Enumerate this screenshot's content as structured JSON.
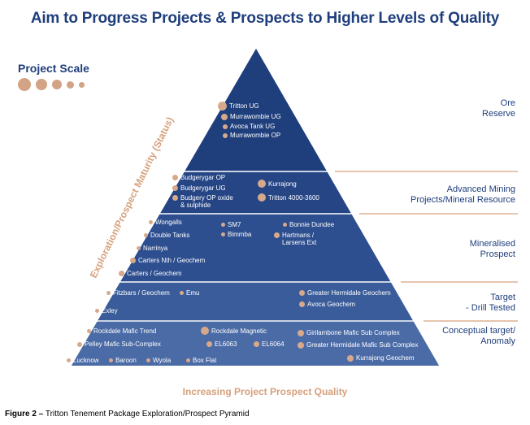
{
  "title": "Aim to Progress Projects & Prospects to Higher Levels of Quality",
  "scale_legend": {
    "label": "Project Scale"
  },
  "axes": {
    "x_label": "Increasing Project Prospect Quality",
    "y_label": "Exploration/Prospect Maturity (Status)"
  },
  "stages": [
    {
      "label": "Ore\nReserve"
    },
    {
      "label": "Advanced Mining\nProjects/Mineral Resource"
    },
    {
      "label": "Mineralised\nProspect"
    },
    {
      "label": "Target\n- Drill Tested"
    },
    {
      "label": "Conceptual target/\nAnomaly"
    }
  ],
  "projects": [
    {
      "name": "Tritton UG"
    },
    {
      "name": "Murrawombie UG"
    },
    {
      "name": "Avoca Tank UG"
    },
    {
      "name": "Murrawombie OP"
    },
    {
      "name": "Budgerygar OP"
    },
    {
      "name": "Budgerygar UG"
    },
    {
      "name": "Budgery OP oxide\n& sulphide"
    },
    {
      "name": "Kurrajong"
    },
    {
      "name": "Tritton 4000-3600"
    },
    {
      "name": "Wongalls"
    },
    {
      "name": "SM7"
    },
    {
      "name": "Bonnie Dundee"
    },
    {
      "name": "Double Tanks"
    },
    {
      "name": "Bimmba"
    },
    {
      "name": "Hartmans /\nLarsens Ext"
    },
    {
      "name": "Narrinya"
    },
    {
      "name": "Carters Nth / Geochem"
    },
    {
      "name": "Carters / Geochem"
    },
    {
      "name": "Fitzbars / Geochem"
    },
    {
      "name": "Emu"
    },
    {
      "name": "Greater Hermidale Geochem"
    },
    {
      "name": "Avoca Geochem"
    },
    {
      "name": "Exley"
    },
    {
      "name": "Rockdale Mafic Trend"
    },
    {
      "name": "Rockdale Magnetic"
    },
    {
      "name": "Girilambone Mafic Sub Complex"
    },
    {
      "name": "Pelley Mafic Sub-Complex"
    },
    {
      "name": "EL6063"
    },
    {
      "name": "EL6064"
    },
    {
      "name": "Greater Hermidale Mafic Sub Complex"
    },
    {
      "name": "Lucknow"
    },
    {
      "name": "Baroon"
    },
    {
      "name": "Wyola"
    },
    {
      "name": "Box Flat"
    },
    {
      "name": "Kurrajong Geochem"
    }
  ],
  "caption": {
    "figure": "Figure 2 –",
    "text": " Tritton Tenement Package Exploration/Prospect Pyramid"
  },
  "colors": {
    "navy": "#1f3e7c",
    "dot": "#d7a98b",
    "accent": "#d6a07c"
  }
}
